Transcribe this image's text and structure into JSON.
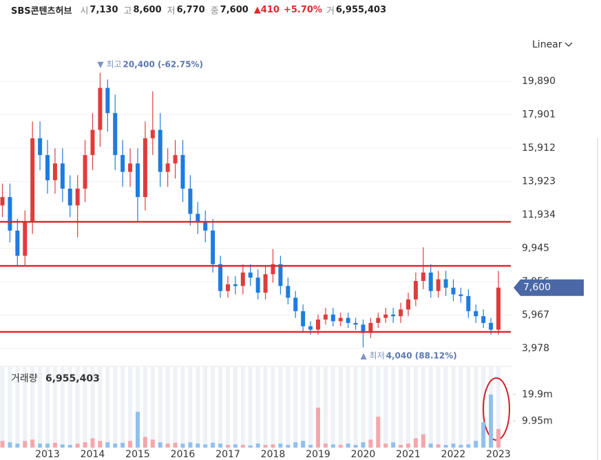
{
  "header": {
    "name": "SBS콘텐츠허브",
    "fields": [
      {
        "label": "시",
        "value": "7,130"
      },
      {
        "label": "고",
        "value": "8,600"
      },
      {
        "label": "저",
        "value": "6,770"
      },
      {
        "label": "종",
        "value": "7,600"
      }
    ],
    "change": "▲410",
    "change_pct": "+5.70%",
    "volume_label": "거",
    "volume_value": "6,955,403"
  },
  "chart_data": {
    "type": "candlestick",
    "scale_mode": "Linear",
    "categories": [
      null,
      null,
      null,
      null,
      null,
      null,
      null,
      null,
      null,
      null,
      null,
      null,
      null,
      null,
      null,
      null,
      null,
      null,
      null,
      null,
      null,
      null,
      null,
      null,
      null,
      null,
      null,
      null,
      null,
      null,
      null,
      null,
      null,
      null,
      null,
      null,
      null,
      null,
      null,
      null,
      null,
      null,
      null,
      null,
      null,
      null,
      null,
      null,
      null,
      null,
      null,
      null,
      null,
      null,
      null,
      null,
      null,
      null,
      null,
      null,
      null,
      null,
      null,
      null,
      null,
      null,
      null
    ],
    "open": [
      12500,
      13000,
      11000,
      9500,
      11500,
      16500,
      15500,
      14000,
      15000,
      13500,
      12500,
      13500,
      15500,
      17000,
      19500,
      18000,
      15500,
      14500,
      15000,
      13000,
      16500,
      17000,
      14500,
      15000,
      15500,
      13500,
      12000,
      11500,
      11000,
      9000,
      7400,
      7800,
      7700,
      8500,
      8200,
      7300,
      8400,
      9000,
      7700,
      7000,
      6200,
      5300,
      5100,
      5700,
      6000,
      5600,
      5800,
      5500,
      5400,
      4900,
      5500,
      5800,
      6000,
      5900,
      6300,
      6900,
      8000,
      8500,
      7400,
      8100,
      7600,
      7200,
      7100,
      6200,
      5900,
      5500,
      5100
    ],
    "high": [
      13800,
      13800,
      11700,
      12200,
      17500,
      17500,
      16400,
      15900,
      15900,
      14300,
      14300,
      16400,
      18000,
      20400,
      20000,
      19100,
      16400,
      15900,
      15900,
      17500,
      19300,
      18000,
      15900,
      16400,
      16400,
      14300,
      12700,
      12200,
      11700,
      9500,
      8300,
      8300,
      9000,
      9000,
      8700,
      8900,
      9900,
      9500,
      8200,
      7400,
      6600,
      5600,
      6000,
      6400,
      6400,
      6100,
      6100,
      5800,
      5700,
      5800,
      6100,
      6400,
      6400,
      6700,
      7300,
      8500,
      10000,
      9000,
      8600,
      8600,
      8100,
      7600,
      7500,
      6600,
      6300,
      5800,
      8600
    ],
    "low": [
      11800,
      10300,
      8900,
      8900,
      10800,
      14600,
      13200,
      13200,
      12700,
      11800,
      10600,
      12700,
      14600,
      16000,
      16900,
      14600,
      13600,
      13600,
      11500,
      12200,
      15500,
      13600,
      13600,
      14100,
      12700,
      11300,
      10800,
      10300,
      8500,
      7000,
      7000,
      7200,
      7200,
      7700,
      6900,
      6900,
      7900,
      7200,
      6600,
      5800,
      5000,
      4800,
      4800,
      5400,
      5300,
      5300,
      5200,
      5100,
      4040,
      4600,
      5200,
      5500,
      5500,
      5500,
      5900,
      6500,
      7500,
      7000,
      7000,
      7100,
      6800,
      6700,
      5800,
      5500,
      5200,
      4800,
      4800
    ],
    "close": [
      13000,
      11000,
      9500,
      11500,
      16500,
      15500,
      14000,
      15000,
      13500,
      12500,
      13500,
      15500,
      17000,
      19500,
      18000,
      15500,
      14500,
      15000,
      13000,
      16500,
      17000,
      14500,
      15000,
      15500,
      13500,
      12000,
      11500,
      11000,
      9000,
      7400,
      7800,
      7700,
      8500,
      8200,
      7300,
      8400,
      9000,
      7700,
      7000,
      6200,
      5300,
      5100,
      5700,
      6000,
      5600,
      5800,
      5500,
      5400,
      4900,
      5500,
      5800,
      6000,
      5900,
      6300,
      6900,
      8000,
      8500,
      7400,
      8100,
      7600,
      7200,
      7100,
      6200,
      5900,
      5500,
      5100,
      7600
    ],
    "up_color": "#e03c3c",
    "down_color": "#1e7be0",
    "ylim": [
      3200,
      21250
    ],
    "yticks": [
      {
        "value": 3978,
        "label": "3,978"
      },
      {
        "value": 5967,
        "label": "5,967"
      },
      {
        "value": 7956,
        "label": "7,956"
      },
      {
        "value": 9945,
        "label": "9,945"
      },
      {
        "value": 11934,
        "label": "11,934"
      },
      {
        "value": 13923,
        "label": "13,923"
      },
      {
        "value": 15912,
        "label": "15,912"
      },
      {
        "value": 17901,
        "label": "17,901"
      },
      {
        "value": 19890,
        "label": "19,890"
      }
    ],
    "xticks": [
      {
        "value": 6,
        "label": "2013"
      },
      {
        "value": 12,
        "label": "2014"
      },
      {
        "value": 18,
        "label": "2015"
      },
      {
        "value": 24,
        "label": "2016"
      },
      {
        "value": 30,
        "label": "2017"
      },
      {
        "value": 36,
        "label": "2018"
      },
      {
        "value": 42,
        "label": "2019"
      },
      {
        "value": 48,
        "label": "2020"
      },
      {
        "value": 54,
        "label": "2021"
      },
      {
        "value": 60,
        "label": "2022"
      },
      {
        "value": 66,
        "label": "2023"
      }
    ],
    "grid": true,
    "hlines": [
      11524,
      8899,
      4962
    ],
    "hline_color": "#e0282e",
    "current_price": {
      "value": 7600,
      "label": "7,600"
    },
    "high_note": {
      "text": "▼ 최고",
      "value": 20400,
      "label": "20,400 (-62.75%)"
    },
    "low_note": {
      "text": "▲ 최저",
      "value": 4040,
      "label": "4,040 (88.12%)"
    },
    "volume": {
      "label": "거래량",
      "last": "6,955,403",
      "values": [
        2.5,
        2.0,
        1.5,
        2.5,
        3.0,
        1.5,
        1.5,
        1.8,
        1.2,
        1.0,
        1.5,
        2.0,
        3.5,
        2.5,
        2.0,
        1.5,
        1.8,
        2.5,
        13.4,
        4.0,
        3.0,
        2.0,
        1.5,
        1.8,
        1.5,
        2.0,
        1.5,
        1.2,
        1.8,
        1.5,
        1.0,
        1.2,
        1.0,
        0.8,
        1.5,
        1.0,
        1.2,
        1.5,
        1.0,
        2.0,
        2.5,
        1.0,
        15.0,
        1.5,
        1.2,
        1.0,
        1.5,
        1.0,
        2.0,
        3.0,
        11.6,
        1.5,
        2.0,
        1.0,
        1.5,
        3.5,
        5.0,
        1.5,
        1.2,
        1.0,
        1.5,
        1.0,
        1.2,
        2.5,
        9.5,
        19.9,
        7.0
      ],
      "ylim": [
        0,
        24
      ],
      "yticks": [
        {
          "value": 9.95,
          "label": "9.95m"
        },
        {
          "value": 19.9,
          "label": "19.9m"
        }
      ],
      "up_color": "#f4a7ab",
      "down_color": "#8fc0ef"
    }
  }
}
